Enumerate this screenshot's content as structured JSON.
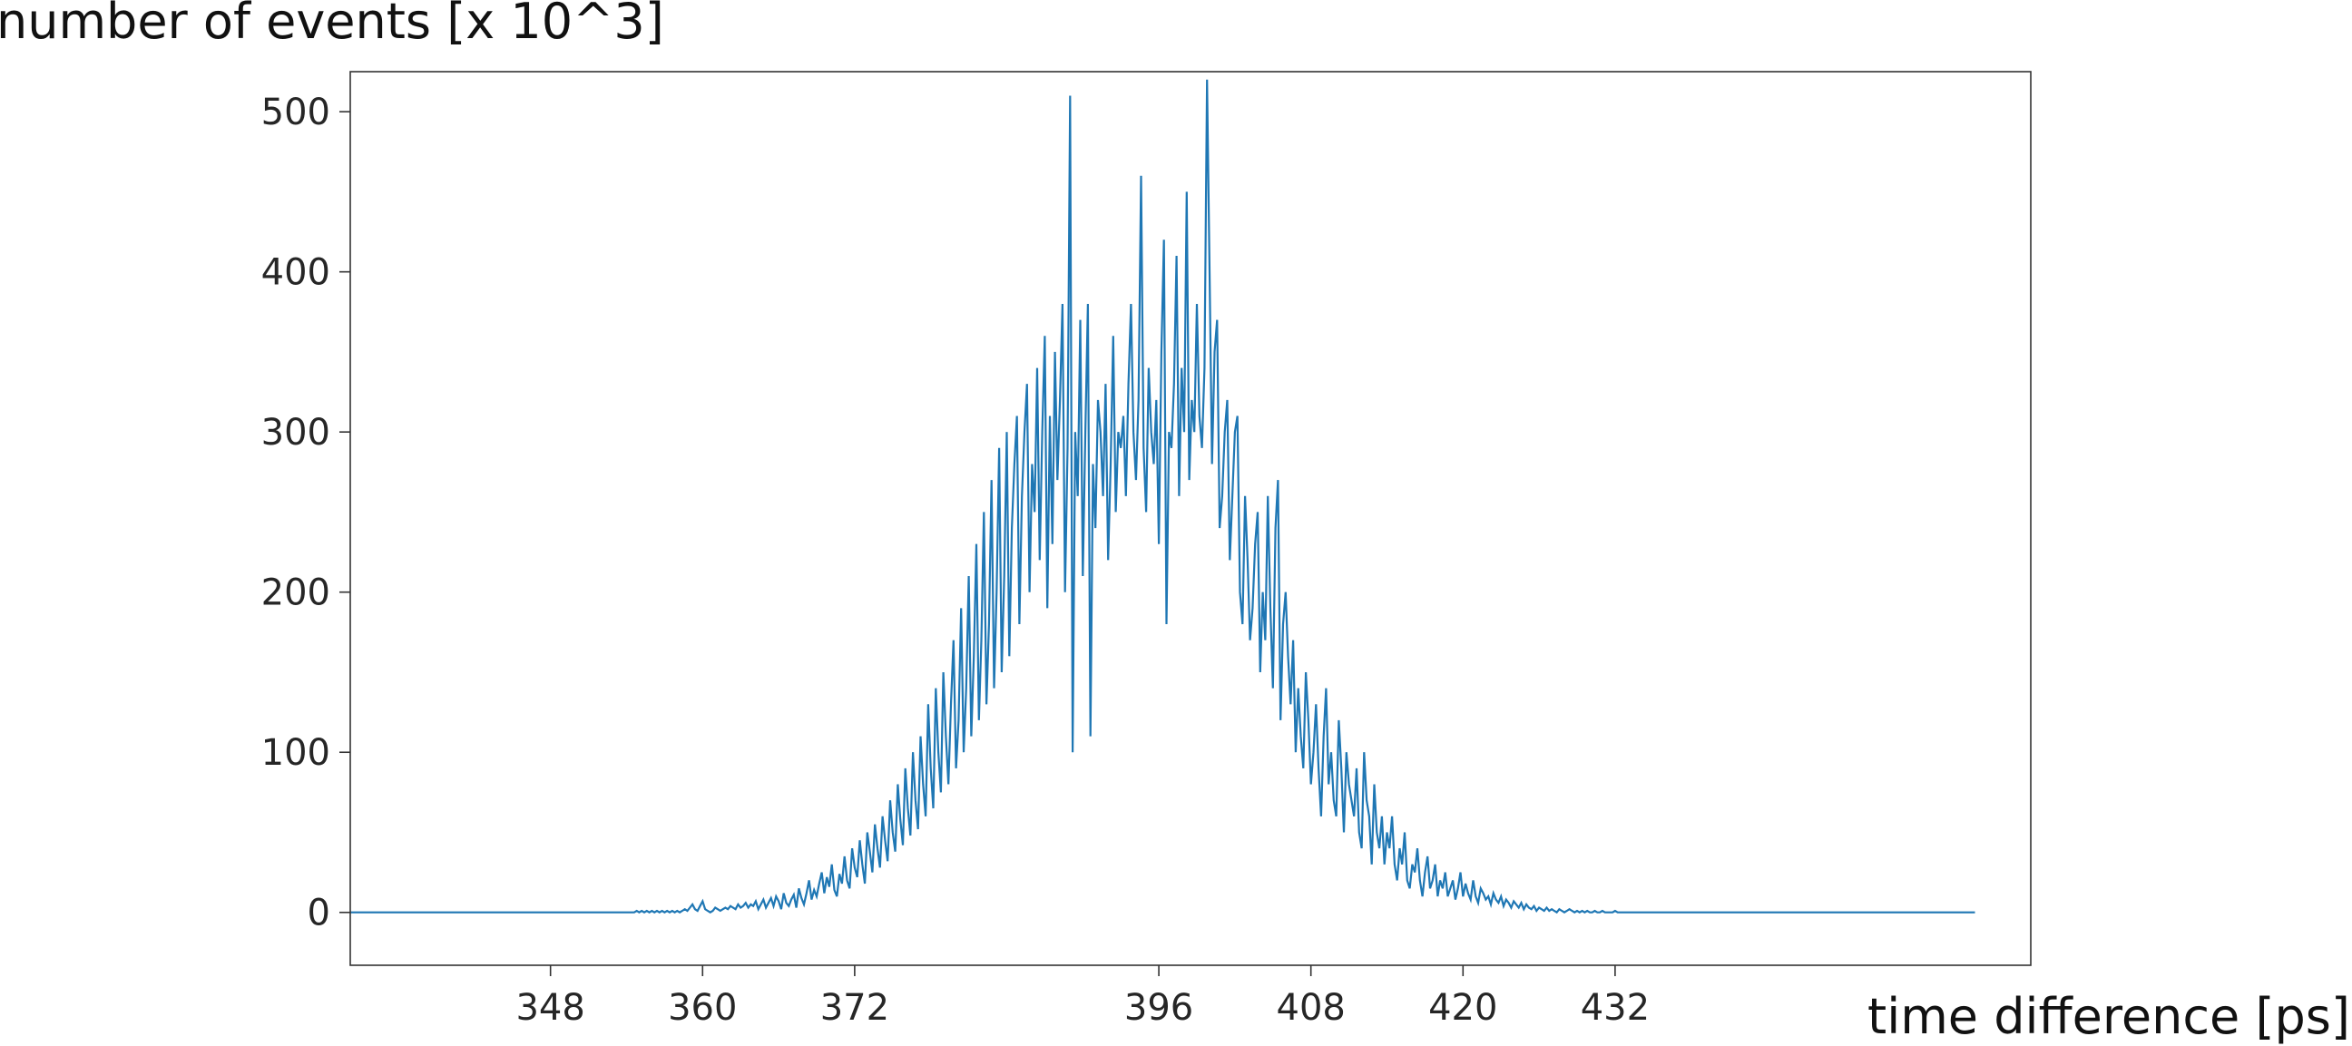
{
  "chart_data": {
    "type": "line",
    "title": "",
    "xlabel": "time difference [ps]",
    "ylabel": "number of events [x 10^3]",
    "xlim": [
      332.2,
      464.8
    ],
    "ylim": [
      -33,
      525
    ],
    "xticks": [
      348,
      360,
      372,
      396,
      408,
      420,
      432
    ],
    "xtick_labels": [
      "348",
      "360",
      "372",
      "396",
      "408",
      "420",
      "432"
    ],
    "yticks": [
      0,
      100,
      200,
      300,
      400,
      500
    ],
    "ytick_labels": [
      "0",
      "100",
      "200",
      "300",
      "400",
      "500"
    ],
    "grid": false,
    "legend": "none",
    "series": [
      {
        "color": "#1f77b4",
        "x_start": 332.2,
        "x_step": 0.2,
        "values": [
          0,
          0,
          0,
          0,
          0,
          0,
          0,
          0,
          0,
          0,
          0,
          0,
          0,
          0,
          0,
          0,
          0,
          0,
          0,
          0,
          0,
          0,
          0,
          0,
          0,
          0,
          0,
          0,
          0,
          0,
          0,
          0,
          0,
          0,
          0,
          0,
          0,
          0,
          0,
          0,
          0,
          0,
          0,
          0,
          0,
          0,
          0,
          0,
          0,
          0,
          0,
          0,
          0,
          0,
          0,
          0,
          0,
          0,
          0,
          0,
          0,
          0,
          0,
          0,
          0,
          0,
          0,
          0,
          0,
          0,
          0,
          0,
          0,
          0,
          0,
          0,
          0,
          0,
          0,
          0,
          0,
          0,
          0,
          0,
          0,
          0,
          0,
          0,
          0,
          0,
          0,
          0,
          0,
          0,
          0,
          0,
          0,
          0,
          0,
          0,
          0,
          0,
          0,
          0,
          0,
          0,
          0,
          0,
          0,
          0,
          0,
          0,
          0,
          1,
          0,
          1,
          0,
          1,
          0,
          1,
          0,
          1,
          0,
          1,
          0,
          1,
          0,
          1,
          0,
          1,
          0,
          1,
          2,
          1,
          3,
          5,
          2,
          1,
          4,
          7,
          2,
          1,
          0,
          1,
          3,
          2,
          1,
          2,
          3,
          2,
          4,
          3,
          2,
          5,
          3,
          4,
          6,
          3,
          5,
          4,
          7,
          2,
          5,
          8,
          3,
          6,
          9,
          4,
          10,
          7,
          2,
          12,
          6,
          4,
          8,
          11,
          3,
          15,
          9,
          5,
          12,
          20,
          8,
          14,
          10,
          18,
          25,
          12,
          22,
          16,
          30,
          14,
          10,
          24,
          18,
          35,
          20,
          15,
          40,
          28,
          22,
          45,
          30,
          18,
          50,
          38,
          25,
          55,
          40,
          28,
          60,
          45,
          32,
          70,
          50,
          38,
          80,
          58,
          42,
          90,
          65,
          48,
          100,
          70,
          52,
          110,
          80,
          60,
          130,
          90,
          65,
          140,
          100,
          75,
          150,
          110,
          80,
          130,
          170,
          90,
          120,
          190,
          100,
          140,
          210,
          110,
          160,
          230,
          120,
          170,
          250,
          130,
          180,
          270,
          140,
          200,
          290,
          150,
          210,
          300,
          160,
          240,
          280,
          310,
          180,
          260,
          300,
          330,
          200,
          280,
          250,
          340,
          220,
          300,
          360,
          190,
          310,
          230,
          350,
          270,
          320,
          380,
          200,
          290,
          510,
          100,
          300,
          260,
          370,
          210,
          300,
          380,
          110,
          280,
          240,
          320,
          300,
          260,
          330,
          220,
          280,
          360,
          250,
          300,
          290,
          310,
          260,
          330,
          380,
          300,
          270,
          320,
          460,
          290,
          250,
          340,
          300,
          280,
          320,
          230,
          350,
          420,
          180,
          300,
          290,
          330,
          410,
          260,
          340,
          300,
          450,
          270,
          320,
          300,
          380,
          310,
          290,
          340,
          520,
          400,
          280,
          350,
          370,
          240,
          260,
          300,
          320,
          220,
          260,
          300,
          310,
          200,
          180,
          260,
          220,
          170,
          190,
          230,
          250,
          150,
          200,
          170,
          260,
          190,
          140,
          240,
          270,
          120,
          180,
          200,
          160,
          130,
          170,
          100,
          140,
          110,
          90,
          150,
          120,
          80,
          100,
          130,
          90,
          60,
          110,
          140,
          80,
          100,
          70,
          60,
          120,
          90,
          50,
          100,
          80,
          70,
          60,
          90,
          50,
          40,
          100,
          70,
          60,
          30,
          80,
          50,
          40,
          60,
          30,
          50,
          40,
          60,
          30,
          20,
          40,
          30,
          50,
          20,
          15,
          30,
          25,
          40,
          20,
          10,
          25,
          35,
          15,
          20,
          30,
          10,
          20,
          15,
          25,
          10,
          15,
          20,
          8,
          15,
          25,
          10,
          18,
          12,
          8,
          20,
          10,
          6,
          15,
          12,
          8,
          10,
          5,
          12,
          8,
          6,
          10,
          4,
          8,
          6,
          3,
          7,
          5,
          3,
          6,
          2,
          5,
          3,
          2,
          4,
          1,
          3,
          2,
          1,
          3,
          1,
          2,
          1,
          0,
          2,
          1,
          0,
          1,
          2,
          1,
          0,
          1,
          0,
          1,
          0,
          1,
          0,
          0,
          1,
          0,
          0,
          1,
          0,
          0,
          0,
          0,
          1,
          0,
          0,
          0,
          0,
          0,
          0,
          0,
          0,
          0,
          0,
          0,
          0,
          0,
          0,
          0,
          0,
          0,
          0,
          0,
          0,
          0,
          0,
          0,
          0,
          0,
          0,
          0,
          0,
          0,
          0,
          0,
          0,
          0,
          0,
          0,
          0,
          0,
          0,
          0,
          0,
          0,
          0,
          0,
          0,
          0,
          0,
          0,
          0,
          0,
          0,
          0,
          0,
          0,
          0,
          0,
          0,
          0,
          0,
          0,
          0,
          0,
          0,
          0,
          0,
          0,
          0,
          0,
          0,
          0,
          0,
          0,
          0,
          0,
          0,
          0,
          0,
          0,
          0,
          0,
          0,
          0,
          0,
          0,
          0,
          0,
          0,
          0,
          0,
          0,
          0,
          0,
          0,
          0,
          0,
          0,
          0,
          0,
          0,
          0,
          0,
          0,
          0,
          0,
          0,
          0,
          0,
          0,
          0,
          0,
          0,
          0,
          0,
          0,
          0,
          0,
          0,
          0,
          0,
          0,
          0,
          0,
          0,
          0,
          0,
          0,
          0,
          0,
          0,
          0,
          0,
          0,
          0,
          0,
          0,
          0,
          0,
          0,
          0,
          0,
          0,
          0,
          0
        ]
      }
    ]
  }
}
